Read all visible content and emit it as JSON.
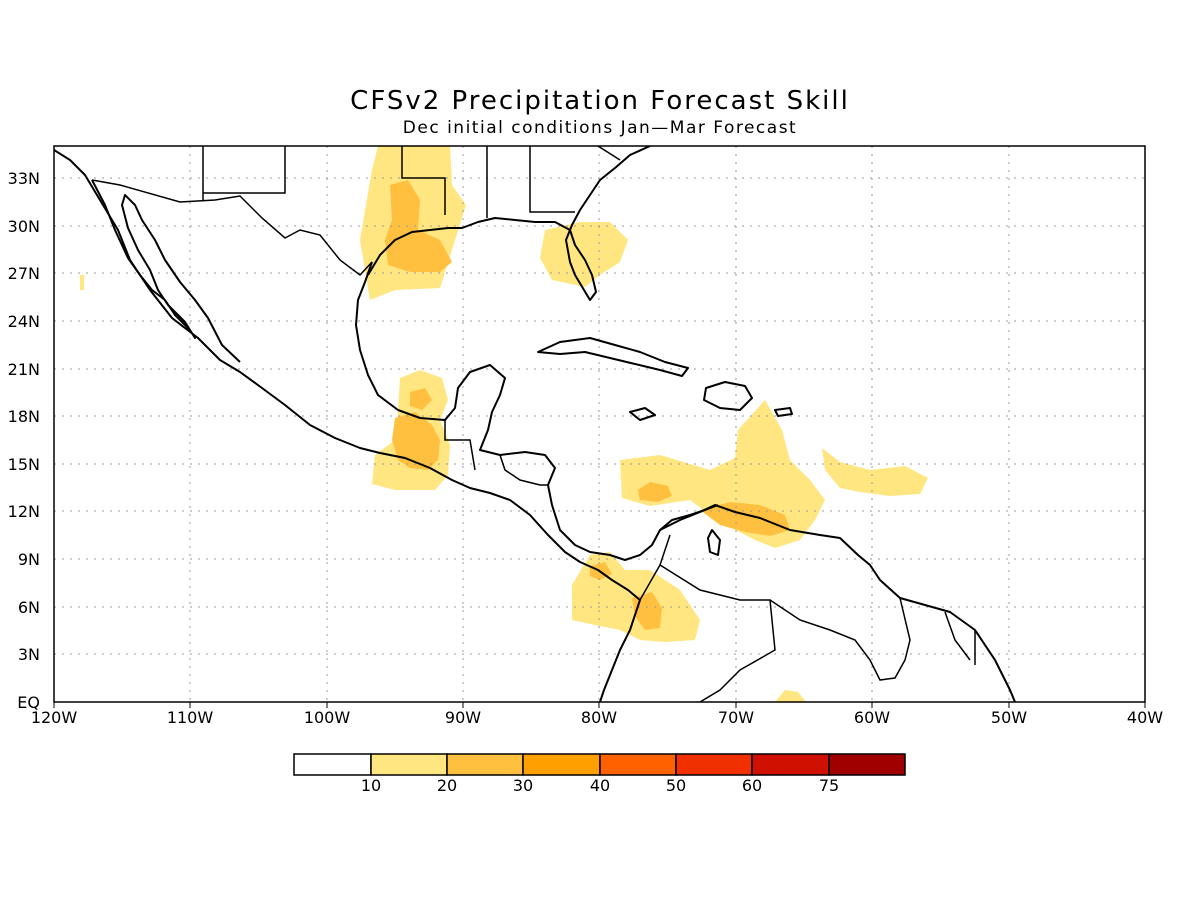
{
  "title": "CFSv2 Precipitation Forecast Skill",
  "subtitle": "Dec initial conditions   Jan—Mar Forecast",
  "lat_labels": [
    "EQ",
    "3N",
    "6N",
    "9N",
    "12N",
    "15N",
    "18N",
    "21N",
    "24N",
    "27N",
    "30N",
    "33N"
  ],
  "lon_labels": [
    "120W",
    "110W",
    "100W",
    "90W",
    "80W",
    "70W",
    "60W",
    "50W",
    "40W"
  ],
  "colorbar": {
    "labels": [
      "10",
      "20",
      "30",
      "40",
      "50",
      "60",
      "75"
    ],
    "colors": [
      "#ffffff",
      "#ffe680",
      "#ffc040",
      "#ffa000",
      "#ff6000",
      "#f03000",
      "#d01000",
      "#a00000"
    ]
  },
  "map": {
    "region": "Caribbean / Central America / Gulf of Mexico",
    "lon_range": [
      -120,
      -40
    ],
    "lat_range": [
      0,
      35
    ],
    "grid": "dotted",
    "coastline_color": "#000000"
  }
}
